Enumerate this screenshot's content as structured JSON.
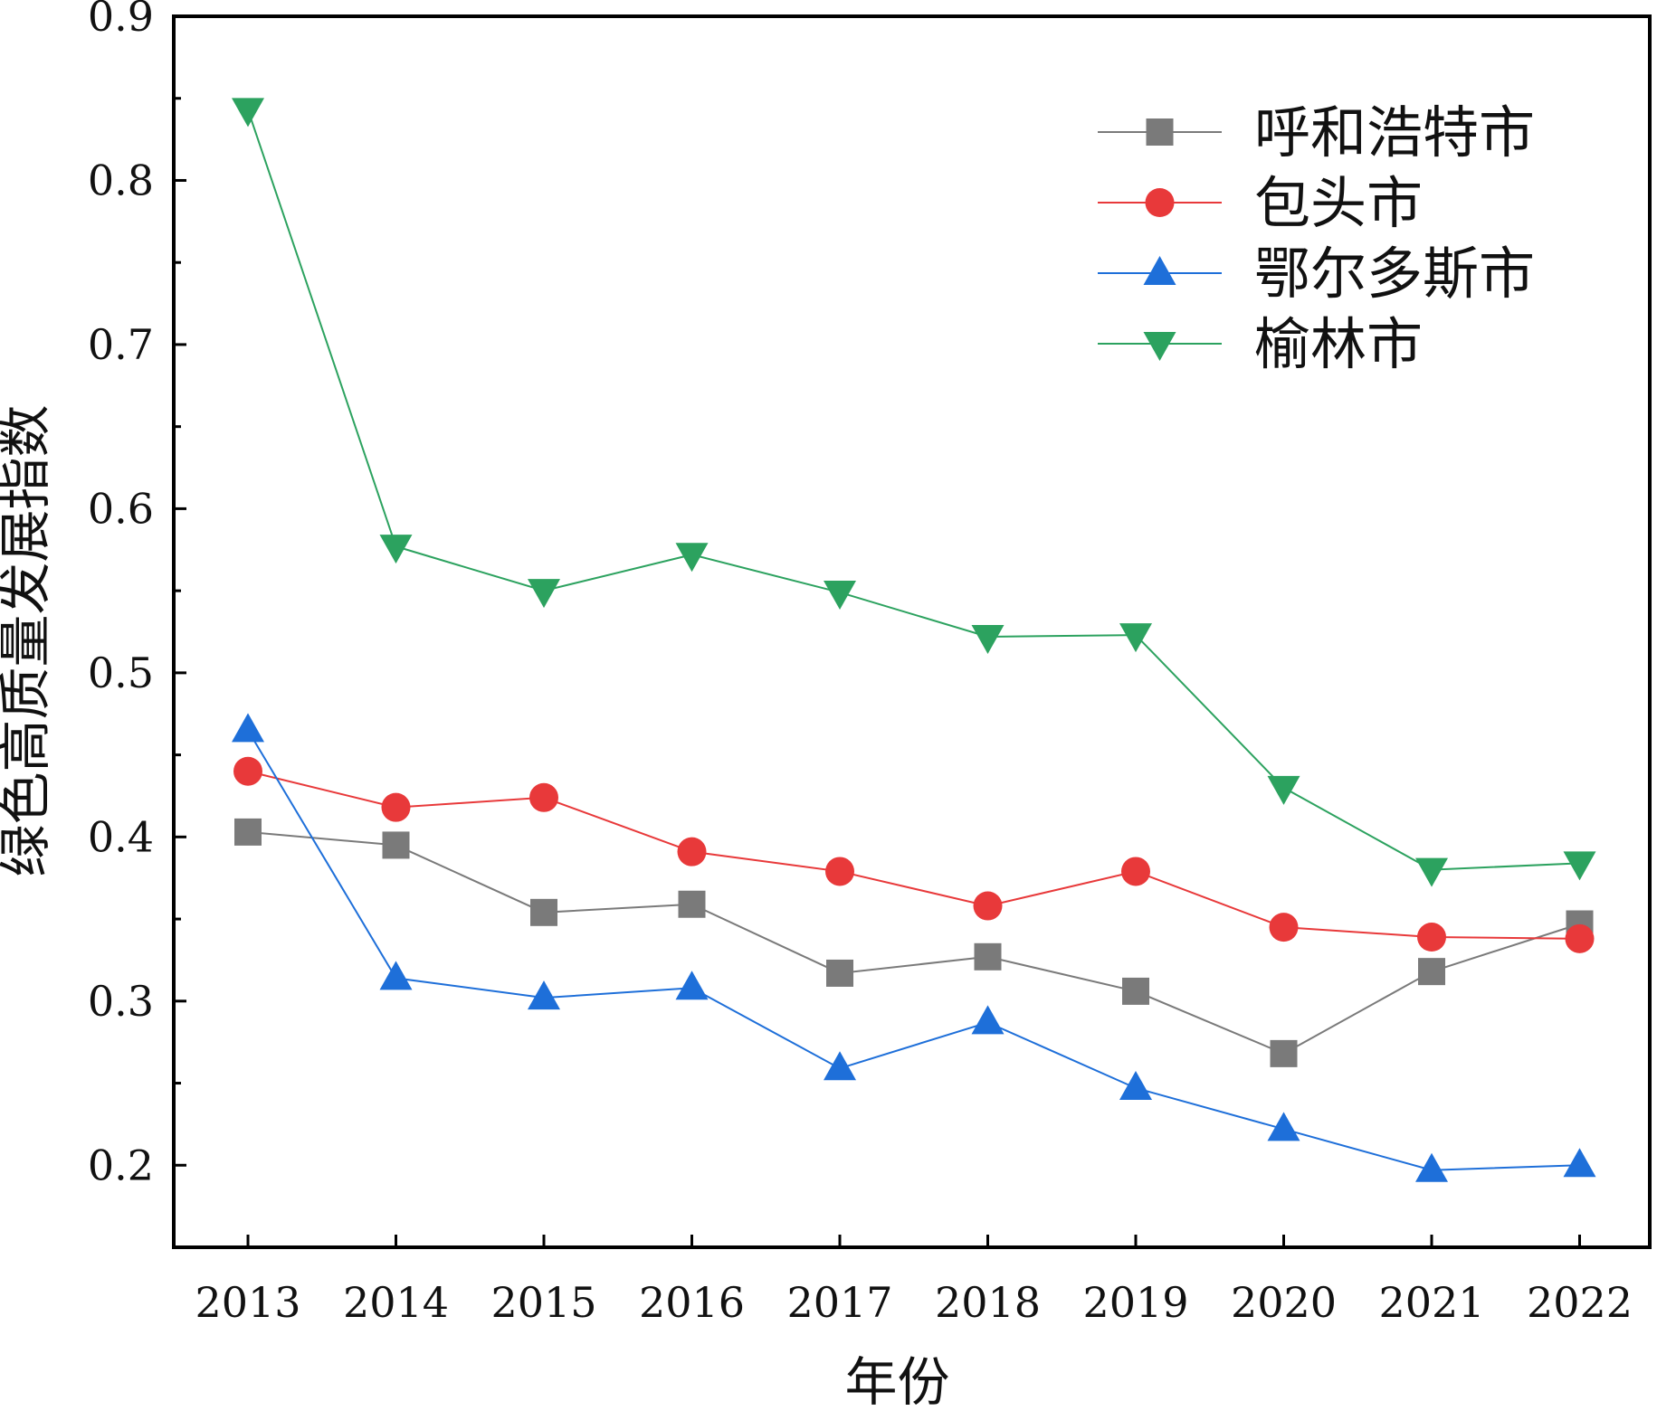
{
  "chart_data": {
    "type": "line",
    "xlabel": "年份",
    "ylabel": "绿色高质量发展指数",
    "x": [
      "2013",
      "2014",
      "2015",
      "2016",
      "2017",
      "2018",
      "2019",
      "2020",
      "2021",
      "2022"
    ],
    "ylim": [
      0.15,
      0.9
    ],
    "yticks": [
      "0.2",
      "0.3",
      "0.4",
      "0.5",
      "0.6",
      "0.7",
      "0.8",
      "0.9"
    ],
    "legend_position": "top-right",
    "grid": false,
    "series": [
      {
        "name": "呼和浩特市",
        "color": "#7a7a7a",
        "marker": "square",
        "values": [
          0.403,
          0.395,
          0.354,
          0.359,
          0.317,
          0.327,
          0.306,
          0.268,
          0.318,
          0.347
        ]
      },
      {
        "name": "包头市",
        "color": "#e8393a",
        "marker": "circle",
        "values": [
          0.44,
          0.418,
          0.424,
          0.391,
          0.379,
          0.358,
          0.379,
          0.345,
          0.339,
          0.338
        ]
      },
      {
        "name": "鄂尔多斯市",
        "color": "#1e6fd9",
        "marker": "triangle-up",
        "values": [
          0.465,
          0.314,
          0.302,
          0.308,
          0.259,
          0.287,
          0.247,
          0.222,
          0.197,
          0.2
        ]
      },
      {
        "name": "榆林市",
        "color": "#2ca25f",
        "marker": "triangle-down",
        "values": [
          0.843,
          0.577,
          0.55,
          0.572,
          0.549,
          0.522,
          0.523,
          0.43,
          0.38,
          0.384
        ]
      }
    ]
  }
}
